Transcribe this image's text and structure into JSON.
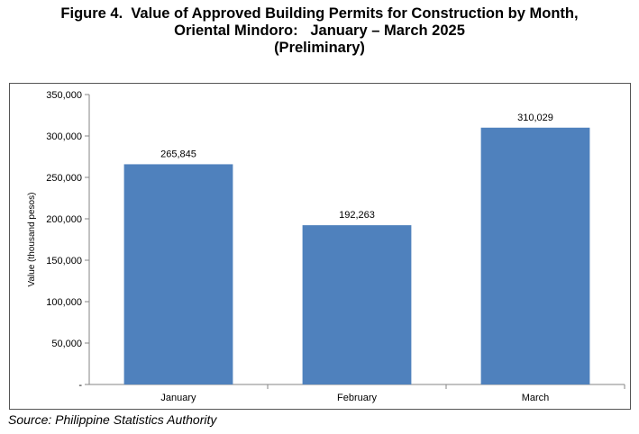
{
  "figure": {
    "title_lines": [
      "Figure 4.  Value of Approved Building Permits for Construction by Month,",
      "Oriental Mindoro:   January – March 2025",
      "(Preliminary)"
    ]
  },
  "source": "Source: Philippine Statistics Authority",
  "chart_data": {
    "type": "bar",
    "title": "Figure 4.  Value of Approved Building Permits for Construction by Month, Oriental Mindoro:   January – March 2025 (Preliminary)",
    "categories": [
      "January",
      "February",
      "March"
    ],
    "values": [
      265845,
      192263,
      310029
    ],
    "data_labels": [
      "265,845",
      "192,263",
      "310,029"
    ],
    "xlabel": "",
    "ylabel": "Value (thousand pesos)",
    "ylim": [
      0,
      350000
    ],
    "yticks": [
      0,
      50000,
      100000,
      150000,
      200000,
      250000,
      300000,
      350000
    ],
    "ytick_labels": [
      "-",
      "50,000",
      "100,000",
      "150,000",
      "200,000",
      "250,000",
      "300,000",
      "350,000"
    ],
    "grid": false,
    "legend": "none",
    "bar_color": "#4F81BD"
  }
}
